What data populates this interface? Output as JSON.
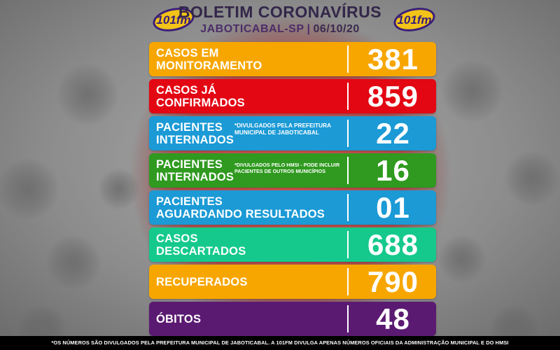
{
  "header": {
    "title": "BOLETIM CORONAVÍRUS",
    "city": "JABOTICABAL-SP",
    "separator": "|",
    "date": "06/10/20",
    "logo_text": "101fm",
    "logo_colors": {
      "fill": "#f2c318",
      "outline": "#3a1f7a"
    }
  },
  "rows": [
    {
      "label": "CASOS EM\nMONITORAMENTO",
      "note": "",
      "value": "381",
      "color": "#f7a600"
    },
    {
      "label": "CASOS JÁ\nCONFIRMADOS",
      "note": "",
      "value": "859",
      "color": "#e30613"
    },
    {
      "label": "PACIENTES\nINTERNADOS",
      "note": "*DIVULGADOS PELA PREFEITURA MUNICIPAL DE JABOTICABAL",
      "value": "22",
      "color": "#1b9ad6"
    },
    {
      "label": "PACIENTES\nINTERNADOS",
      "note": "*DIVULGADOS PELO HMSI - PODE INCLUIR PACIENTES DE OUTROS MUNICÍPIOS",
      "value": "16",
      "color": "#2f9a1f"
    },
    {
      "label": "PACIENTES\nAGUARDANDO RESULTADOS",
      "note": "",
      "value": "01",
      "color": "#1b9ad6"
    },
    {
      "label": "CASOS\nDESCARTADOS",
      "note": "",
      "value": "688",
      "color": "#15c98d"
    },
    {
      "label": "RECUPERADOS",
      "note": "",
      "value": "790",
      "color": "#f7a600"
    },
    {
      "label": "ÓBITOS",
      "note": "",
      "value": "48",
      "color": "#5b1a72"
    }
  ],
  "footer": "*OS NÚMEROS SÃO DIVULGADOS PELA PREFEITURA MUNICIPAL DE JABOTICABAL. A 101FM DIVULGA APENAS NÚMEROS OFICIAIS DA ADMINISTRAÇÃO MUNICIPAL E DO HMSI"
}
